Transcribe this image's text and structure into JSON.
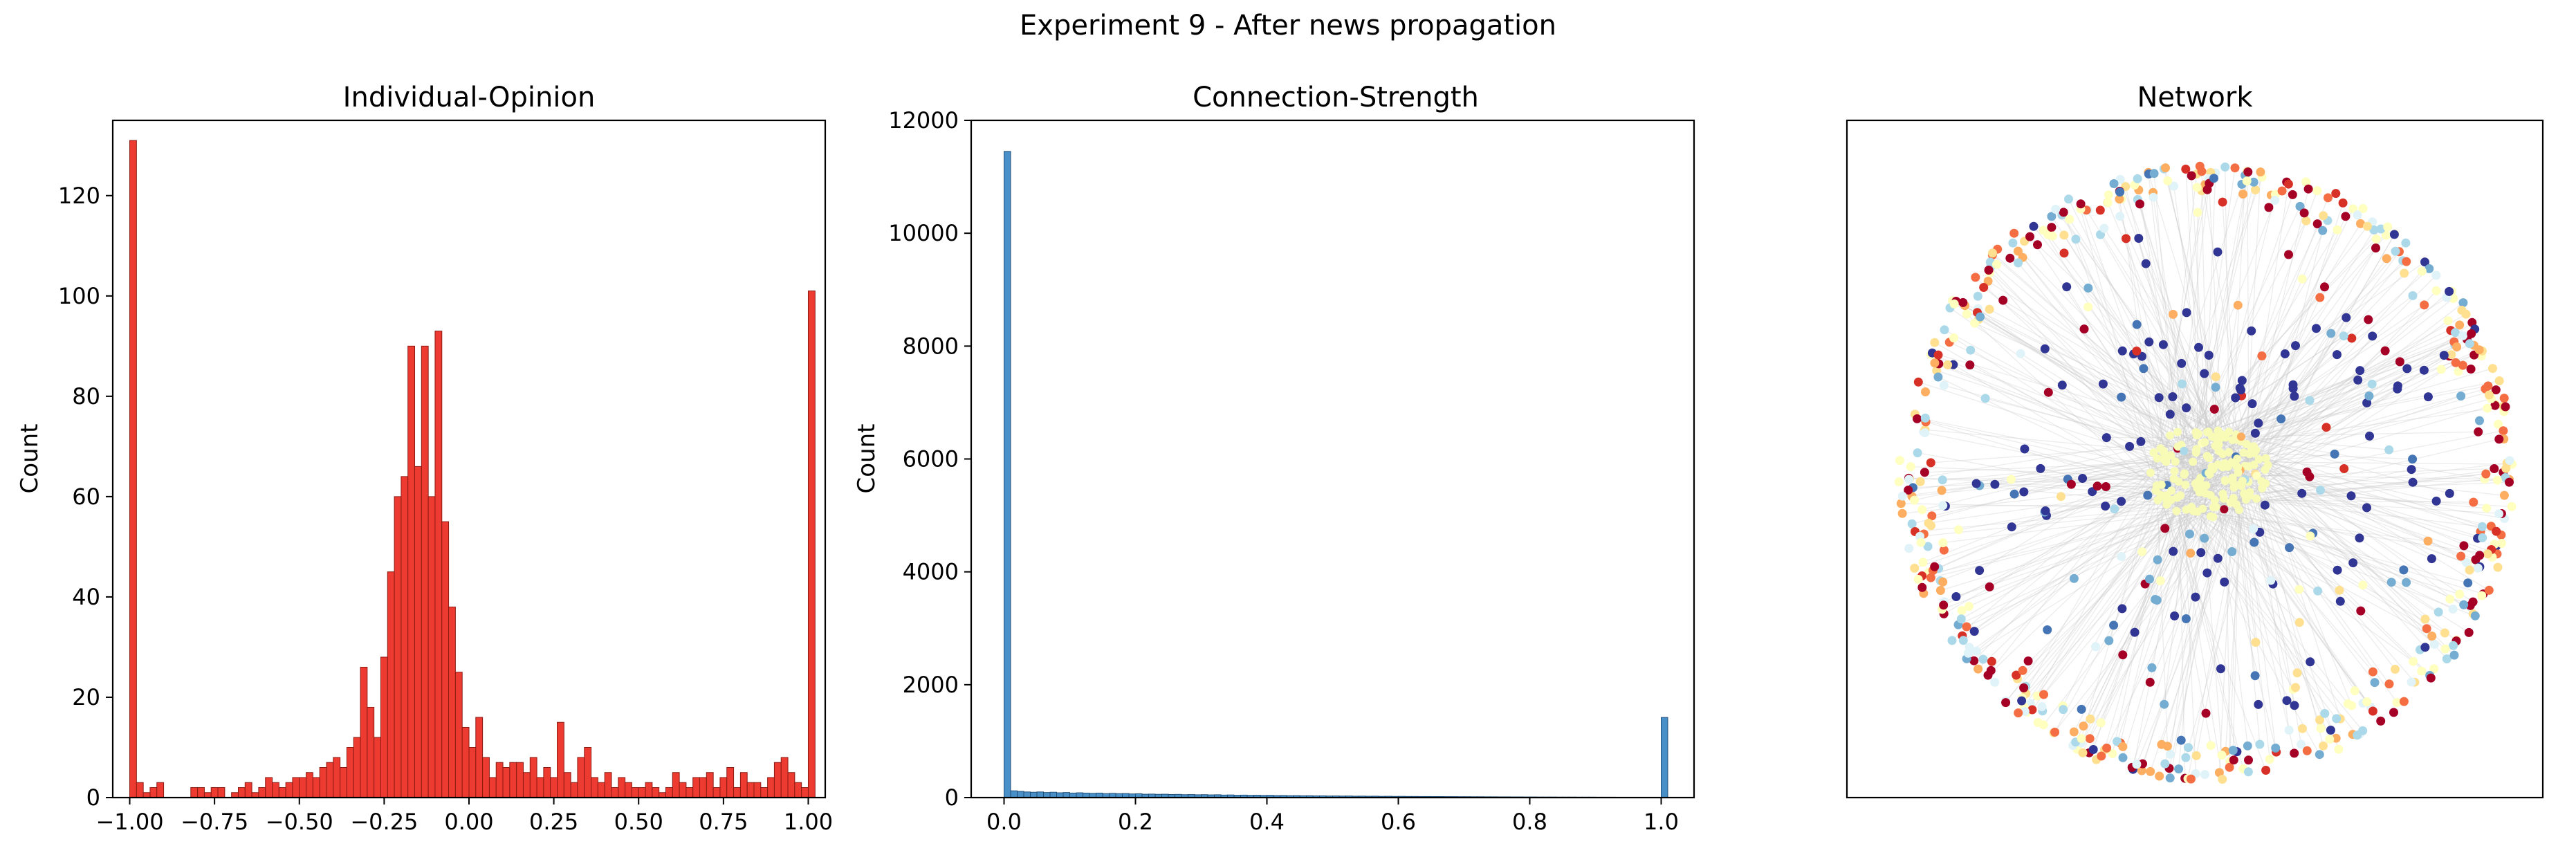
{
  "suptitle": "Experiment 9 - After news propagation",
  "colors": {
    "opinion_bar": "#ee3b32",
    "opinion_edge": "#8b1a12",
    "strength_bar": "#4a90c8",
    "strength_edge": "#1f4e79",
    "edge_gray": "#c8c8c8",
    "node_palette": [
      "#a50026",
      "#d73027",
      "#f46d43",
      "#fdae61",
      "#fee090",
      "#ffffbf",
      "#e0f3f8",
      "#abd9e9",
      "#74add1",
      "#4575b4",
      "#313695"
    ]
  },
  "chart_data": [
    {
      "type": "bar",
      "subtype": "histogram",
      "title": "Individual-Opinion",
      "xlabel": "",
      "ylabel": "Count",
      "xlim": [
        -1.05,
        1.05
      ],
      "ylim": [
        0,
        135
      ],
      "xticks": [
        -1.0,
        -0.75,
        -0.5,
        -0.25,
        0.0,
        0.25,
        0.5,
        0.75,
        1.0
      ],
      "xtick_labels": [
        "−1.00",
        "−0.75",
        "−0.50",
        "−0.25",
        "0.00",
        "0.25",
        "0.50",
        "0.75",
        "1.00"
      ],
      "yticks": [
        0,
        20,
        40,
        60,
        80,
        100,
        120
      ],
      "ytick_labels": [
        "0",
        "20",
        "40",
        "60",
        "80",
        "100",
        "120"
      ],
      "bin_start": -1.0,
      "bin_width": 0.02,
      "values": [
        131,
        3,
        1,
        2,
        3,
        0,
        0,
        0,
        0,
        2,
        2,
        1,
        2,
        2,
        0,
        1,
        2,
        3,
        1,
        2,
        4,
        3,
        2,
        3,
        4,
        4,
        5,
        4,
        6,
        7,
        8,
        6,
        10,
        12,
        26,
        18,
        12,
        28,
        45,
        60,
        64,
        90,
        66,
        90,
        60,
        93,
        55,
        38,
        25,
        14,
        10,
        16,
        8,
        4,
        7,
        6,
        7,
        7,
        5,
        8,
        4,
        6,
        4,
        15,
        5,
        3,
        8,
        10,
        4,
        3,
        5,
        2,
        4,
        3,
        2,
        2,
        3,
        2,
        1,
        2,
        5,
        3,
        2,
        4,
        4,
        5,
        2,
        4,
        6,
        2,
        5,
        3,
        3,
        2,
        4,
        7,
        8,
        5,
        3,
        2,
        101
      ]
    },
    {
      "type": "bar",
      "subtype": "histogram",
      "title": "Connection-Strength",
      "xlabel": "",
      "ylabel": "Count",
      "xlim": [
        -0.05,
        1.05
      ],
      "ylim": [
        0,
        12000
      ],
      "xticks": [
        0.0,
        0.2,
        0.4,
        0.6,
        0.8,
        1.0
      ],
      "xtick_labels": [
        "0.0",
        "0.2",
        "0.4",
        "0.6",
        "0.8",
        "1.0"
      ],
      "yticks": [
        0,
        2000,
        4000,
        6000,
        8000,
        10000,
        12000
      ],
      "ytick_labels": [
        "0",
        "2000",
        "4000",
        "6000",
        "8000",
        "10000",
        "12000"
      ],
      "bin_start": 0.0,
      "bin_width": 0.01,
      "values": [
        11450,
        120,
        110,
        100,
        95,
        100,
        90,
        95,
        85,
        90,
        80,
        85,
        80,
        75,
        80,
        70,
        75,
        70,
        72,
        65,
        68,
        60,
        62,
        58,
        60,
        55,
        57,
        52,
        54,
        50,
        52,
        48,
        50,
        45,
        47,
        42,
        44,
        40,
        42,
        38,
        40,
        36,
        37,
        34,
        35,
        32,
        33,
        30,
        31,
        28,
        29,
        27,
        28,
        25,
        26,
        24,
        25,
        22,
        23,
        21,
        22,
        20,
        20,
        19,
        19,
        18,
        18,
        17,
        17,
        16,
        16,
        15,
        15,
        14,
        14,
        13,
        13,
        12,
        12,
        11,
        11,
        10,
        10,
        10,
        9,
        9,
        9,
        8,
        8,
        8,
        7,
        7,
        7,
        6,
        6,
        6,
        5,
        5,
        5,
        5,
        1420
      ]
    },
    {
      "type": "scatter",
      "subtype": "network-graph",
      "title": "Network",
      "xlabel": "",
      "ylabel": "",
      "axes_ticks": false
    }
  ]
}
